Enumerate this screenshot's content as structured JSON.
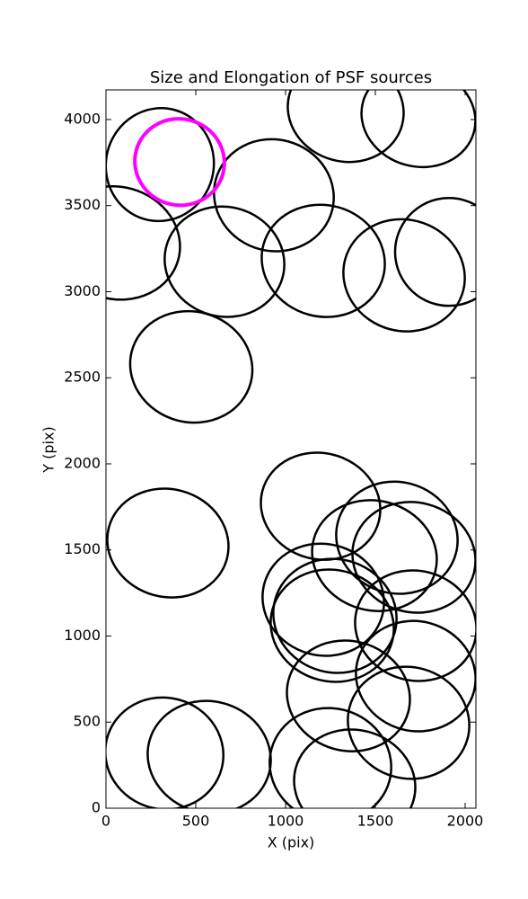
{
  "chart_data": {
    "type": "ellipse",
    "title": "Size and Elongation of PSF sources",
    "x_label": "X (pix)",
    "y_label": "Y (pix)",
    "xlim": [
      0,
      2060
    ],
    "ylim": [
      0,
      4172
    ],
    "xticks": [
      0,
      500,
      1000,
      1500,
      2000
    ],
    "yticks": [
      0,
      500,
      1000,
      1500,
      2000,
      2500,
      3000,
      3500,
      4000
    ],
    "ellipses": [
      {
        "x": 300,
        "y": 3738,
        "width": 600,
        "height": 658,
        "angle": -15,
        "color": "#000000"
      },
      {
        "x": 60,
        "y": 3283,
        "width": 710,
        "height": 652,
        "angle": -15,
        "color": "#000000"
      },
      {
        "x": 935,
        "y": 3560,
        "width": 670,
        "height": 647,
        "angle": -15,
        "color": "#000000"
      },
      {
        "x": 660,
        "y": 3174,
        "width": 670,
        "height": 637,
        "angle": -15,
        "color": "#000000"
      },
      {
        "x": 1210,
        "y": 3179,
        "width": 690,
        "height": 647,
        "angle": -15,
        "color": "#000000"
      },
      {
        "x": 1660,
        "y": 3095,
        "width": 680,
        "height": 647,
        "angle": -15,
        "color": "#000000"
      },
      {
        "x": 1910,
        "y": 3231,
        "width": 600,
        "height": 626,
        "angle": -15,
        "color": "#000000"
      },
      {
        "x": 1335,
        "y": 4056,
        "width": 650,
        "height": 600,
        "angle": -15,
        "color": "#000000"
      },
      {
        "x": 1740,
        "y": 4014,
        "width": 640,
        "height": 574,
        "angle": -15,
        "color": "#000000"
      },
      {
        "x": 475,
        "y": 2563,
        "width": 685,
        "height": 642,
        "angle": -15,
        "color": "#000000"
      },
      {
        "x": 345,
        "y": 1540,
        "width": 680,
        "height": 626,
        "angle": -15,
        "color": "#000000"
      },
      {
        "x": 1195,
        "y": 1754,
        "width": 670,
        "height": 616,
        "angle": -15,
        "color": "#000000"
      },
      {
        "x": 1620,
        "y": 1571,
        "width": 680,
        "height": 647,
        "angle": -15,
        "color": "#000000"
      },
      {
        "x": 1495,
        "y": 1467,
        "width": 700,
        "height": 637,
        "angle": -15,
        "color": "#000000"
      },
      {
        "x": 1715,
        "y": 1457,
        "width": 690,
        "height": 637,
        "angle": -15,
        "color": "#000000"
      },
      {
        "x": 1210,
        "y": 1211,
        "width": 680,
        "height": 647,
        "angle": -15,
        "color": "#000000"
      },
      {
        "x": 1260,
        "y": 1060,
        "width": 690,
        "height": 647,
        "angle": -15,
        "color": "#000000"
      },
      {
        "x": 1275,
        "y": 1117,
        "width": 690,
        "height": 658,
        "angle": -15,
        "color": "#000000"
      },
      {
        "x": 1725,
        "y": 1060,
        "width": 680,
        "height": 637,
        "angle": -15,
        "color": "#000000"
      },
      {
        "x": 1725,
        "y": 767,
        "width": 670,
        "height": 637,
        "angle": -15,
        "color": "#000000"
      },
      {
        "x": 1350,
        "y": 652,
        "width": 690,
        "height": 637,
        "angle": -15,
        "color": "#000000"
      },
      {
        "x": 1685,
        "y": 496,
        "width": 680,
        "height": 647,
        "angle": -15,
        "color": "#000000"
      },
      {
        "x": 325,
        "y": 318,
        "width": 660,
        "height": 647,
        "angle": -15,
        "color": "#000000"
      },
      {
        "x": 575,
        "y": 297,
        "width": 690,
        "height": 647,
        "angle": -15,
        "color": "#000000"
      },
      {
        "x": 1250,
        "y": 251,
        "width": 680,
        "height": 658,
        "angle": -15,
        "color": "#000000"
      },
      {
        "x": 1385,
        "y": 141,
        "width": 680,
        "height": 626,
        "angle": -15,
        "color": "#000000"
      },
      {
        "x": 410,
        "y": 3753,
        "width": 500,
        "height": 501,
        "angle": -15,
        "color": "#ff00ff"
      }
    ]
  }
}
